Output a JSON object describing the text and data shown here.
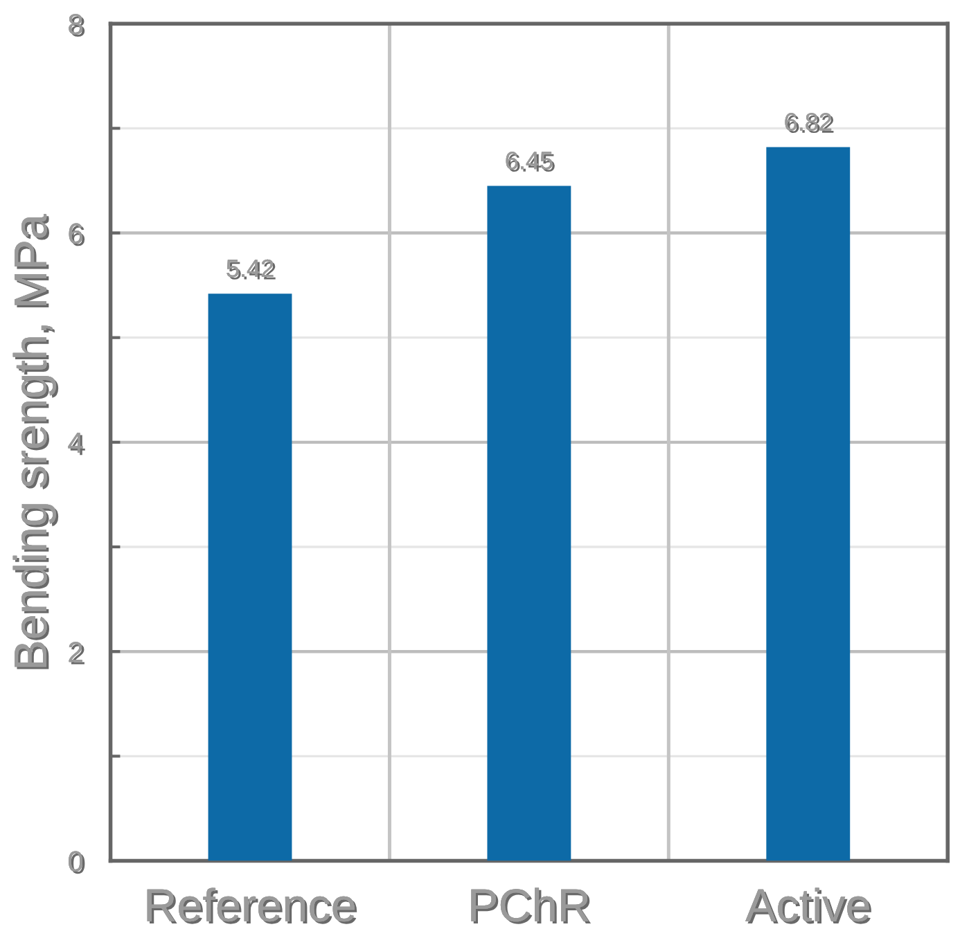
{
  "chart_data": {
    "type": "bar",
    "categories": [
      "Reference",
      "PChR",
      "Active"
    ],
    "values": [
      5.42,
      6.45,
      6.82
    ],
    "color": "#0d6aa7",
    "ylabel": "Bending srength, MPa",
    "ylim": [
      0,
      8
    ],
    "yticks": [
      0,
      {
        "value": 1,
        "label": null
      },
      2,
      {
        "value": 3,
        "label": null
      },
      4,
      {
        "value": 5,
        "label": null
      },
      6,
      {
        "value": 7,
        "label": null
      },
      8
    ],
    "grid": true,
    "data_labels": true
  }
}
